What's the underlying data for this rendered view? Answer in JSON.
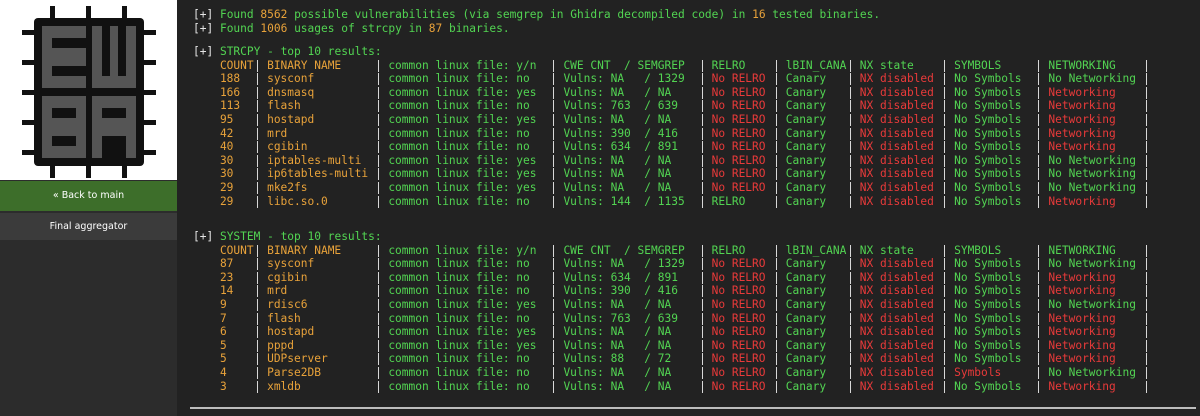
{
  "sidebar": {
    "back": "« Back to main",
    "item": "Final aggregator"
  },
  "summary": [
    {
      "marker": "[+]",
      "parts": [
        {
          "text": "Found ",
          "color": "green"
        },
        {
          "text": "8562",
          "color": "orange"
        },
        {
          "text": " possible vulnerabilities (via semgrep in Ghidra decompiled code) in ",
          "color": "green"
        },
        {
          "text": "16",
          "color": "orange"
        },
        {
          "text": " tested binaries.",
          "color": "green"
        }
      ]
    },
    {
      "marker": "[+]",
      "parts": [
        {
          "text": "Found ",
          "color": "green"
        },
        {
          "text": "1006",
          "color": "orange"
        },
        {
          "text": " usages of strcpy in ",
          "color": "green"
        },
        {
          "text": "87",
          "color": "orange"
        },
        {
          "text": " binaries.",
          "color": "green"
        }
      ]
    }
  ],
  "tables": [
    {
      "marker": "[+]",
      "title": "STRCPY - top 10 results:",
      "header": {
        "cells": [
          "COUNT",
          "BINARY NAME",
          "common linux file: y/n",
          "CWE CNT  / SEMGREP",
          "RELRO",
          "lBIN_CANA",
          "NX state",
          "SYMBOLS",
          "NETWORKING"
        ],
        "colors": [
          "orange",
          "orange",
          "green",
          "green",
          "green",
          "green",
          "green",
          "green",
          "green"
        ]
      },
      "rows": [
        {
          "cells": [
            "188",
            "sysconf",
            "common linux file: no",
            "Vulns: NA   / 1329",
            "No RELRO",
            "Canary",
            "NX disabled",
            "No Symbols",
            "No Networking"
          ],
          "colors": [
            "orange",
            "orange",
            "green",
            "green",
            "red",
            "green",
            "red",
            "green",
            "green"
          ]
        },
        {
          "cells": [
            "166",
            "dnsmasq",
            "common linux file: yes",
            "Vulns: NA   / NA",
            "No RELRO",
            "Canary",
            "NX disabled",
            "No Symbols",
            "Networking"
          ],
          "colors": [
            "orange",
            "orange",
            "green",
            "green",
            "red",
            "green",
            "red",
            "green",
            "red"
          ]
        },
        {
          "cells": [
            "113",
            "flash",
            "common linux file: no",
            "Vulns: 763  / 639",
            "No RELRO",
            "Canary",
            "NX disabled",
            "No Symbols",
            "Networking"
          ],
          "colors": [
            "orange",
            "orange",
            "green",
            "green",
            "red",
            "green",
            "red",
            "green",
            "red"
          ]
        },
        {
          "cells": [
            "95",
            "hostapd",
            "common linux file: yes",
            "Vulns: NA   / NA",
            "No RELRO",
            "Canary",
            "NX disabled",
            "No Symbols",
            "Networking"
          ],
          "colors": [
            "orange",
            "orange",
            "green",
            "green",
            "red",
            "green",
            "red",
            "green",
            "red"
          ]
        },
        {
          "cells": [
            "42",
            "mrd",
            "common linux file: no",
            "Vulns: 390  / 416",
            "No RELRO",
            "Canary",
            "NX disabled",
            "No Symbols",
            "Networking"
          ],
          "colors": [
            "orange",
            "orange",
            "green",
            "green",
            "red",
            "green",
            "red",
            "green",
            "red"
          ]
        },
        {
          "cells": [
            "40",
            "cgibin",
            "common linux file: no",
            "Vulns: 634  / 891",
            "No RELRO",
            "Canary",
            "NX disabled",
            "No Symbols",
            "Networking"
          ],
          "colors": [
            "orange",
            "orange",
            "green",
            "green",
            "red",
            "green",
            "red",
            "green",
            "red"
          ]
        },
        {
          "cells": [
            "30",
            "iptables-multi",
            "common linux file: yes",
            "Vulns: NA   / NA",
            "No RELRO",
            "Canary",
            "NX disabled",
            "No Symbols",
            "No Networking"
          ],
          "colors": [
            "orange",
            "orange",
            "green",
            "green",
            "red",
            "green",
            "red",
            "green",
            "green"
          ]
        },
        {
          "cells": [
            "30",
            "ip6tables-multi",
            "common linux file: yes",
            "Vulns: NA   / NA",
            "No RELRO",
            "Canary",
            "NX disabled",
            "No Symbols",
            "No Networking"
          ],
          "colors": [
            "orange",
            "orange",
            "green",
            "green",
            "red",
            "green",
            "red",
            "green",
            "green"
          ]
        },
        {
          "cells": [
            "29",
            "mke2fs",
            "common linux file: yes",
            "Vulns: NA   / NA",
            "No RELRO",
            "Canary",
            "NX disabled",
            "No Symbols",
            "No Networking"
          ],
          "colors": [
            "orange",
            "orange",
            "green",
            "green",
            "red",
            "green",
            "red",
            "green",
            "green"
          ]
        },
        {
          "cells": [
            "29",
            "libc.so.0",
            "common linux file: no",
            "Vulns: 144  / 1135",
            "RELRO",
            "Canary",
            "NX disabled",
            "No Symbols",
            "Networking"
          ],
          "colors": [
            "orange",
            "orange",
            "green",
            "green",
            "green",
            "green",
            "red",
            "green",
            "red"
          ]
        }
      ]
    },
    {
      "marker": "[+]",
      "title": "SYSTEM - top 10 results:",
      "header": {
        "cells": [
          "COUNT",
          "BINARY NAME",
          "common linux file: y/n",
          "CWE CNT  / SEMGREP",
          "RELRO",
          "lBIN_CANA",
          "NX state",
          "SYMBOLS",
          "NETWORKING"
        ],
        "colors": [
          "orange",
          "orange",
          "green",
          "green",
          "green",
          "green",
          "green",
          "green",
          "green"
        ]
      },
      "rows": [
        {
          "cells": [
            "87",
            "sysconf",
            "common linux file: no",
            "Vulns: NA   / 1329",
            "No RELRO",
            "Canary",
            "NX disabled",
            "No Symbols",
            "No Networking"
          ],
          "colors": [
            "orange",
            "orange",
            "green",
            "green",
            "red",
            "green",
            "red",
            "green",
            "green"
          ]
        },
        {
          "cells": [
            "23",
            "cgibin",
            "common linux file: no",
            "Vulns: 634  / 891",
            "No RELRO",
            "Canary",
            "NX disabled",
            "No Symbols",
            "Networking"
          ],
          "colors": [
            "orange",
            "orange",
            "green",
            "green",
            "red",
            "green",
            "red",
            "green",
            "red"
          ]
        },
        {
          "cells": [
            "14",
            "mrd",
            "common linux file: no",
            "Vulns: 390  / 416",
            "No RELRO",
            "Canary",
            "NX disabled",
            "No Symbols",
            "Networking"
          ],
          "colors": [
            "orange",
            "orange",
            "green",
            "green",
            "red",
            "green",
            "red",
            "green",
            "red"
          ]
        },
        {
          "cells": [
            "9",
            "rdisc6",
            "common linux file: yes",
            "Vulns: NA   / NA",
            "No RELRO",
            "Canary",
            "NX disabled",
            "No Symbols",
            "No Networking"
          ],
          "colors": [
            "orange",
            "orange",
            "green",
            "green",
            "red",
            "green",
            "red",
            "green",
            "green"
          ]
        },
        {
          "cells": [
            "7",
            "flash",
            "common linux file: no",
            "Vulns: 763  / 639",
            "No RELRO",
            "Canary",
            "NX disabled",
            "No Symbols",
            "Networking"
          ],
          "colors": [
            "orange",
            "orange",
            "green",
            "green",
            "red",
            "green",
            "red",
            "green",
            "red"
          ]
        },
        {
          "cells": [
            "6",
            "hostapd",
            "common linux file: yes",
            "Vulns: NA   / NA",
            "No RELRO",
            "Canary",
            "NX disabled",
            "No Symbols",
            "Networking"
          ],
          "colors": [
            "orange",
            "orange",
            "green",
            "green",
            "red",
            "green",
            "red",
            "green",
            "red"
          ]
        },
        {
          "cells": [
            "5",
            "pppd",
            "common linux file: yes",
            "Vulns: NA   / NA",
            "No RELRO",
            "Canary",
            "NX disabled",
            "No Symbols",
            "Networking"
          ],
          "colors": [
            "orange",
            "orange",
            "green",
            "green",
            "red",
            "green",
            "red",
            "green",
            "red"
          ]
        },
        {
          "cells": [
            "5",
            "UDPserver",
            "common linux file: no",
            "Vulns: 88   / 72",
            "No RELRO",
            "Canary",
            "NX disabled",
            "No Symbols",
            "Networking"
          ],
          "colors": [
            "orange",
            "orange",
            "green",
            "green",
            "red",
            "green",
            "red",
            "green",
            "red"
          ]
        },
        {
          "cells": [
            "4",
            "Parse2DB",
            "common linux file: no",
            "Vulns: NA   / NA",
            "No RELRO",
            "Canary",
            "NX disabled",
            "Symbols",
            "No Networking"
          ],
          "colors": [
            "orange",
            "orange",
            "green",
            "green",
            "red",
            "green",
            "red",
            "red",
            "green"
          ]
        },
        {
          "cells": [
            "3",
            "xmldb",
            "common linux file: no",
            "Vulns: NA   / NA",
            "No RELRO",
            "Canary",
            "NX disabled",
            "No Symbols",
            "Networking"
          ],
          "colors": [
            "orange",
            "orange",
            "green",
            "green",
            "red",
            "green",
            "red",
            "green",
            "red"
          ]
        }
      ]
    }
  ]
}
